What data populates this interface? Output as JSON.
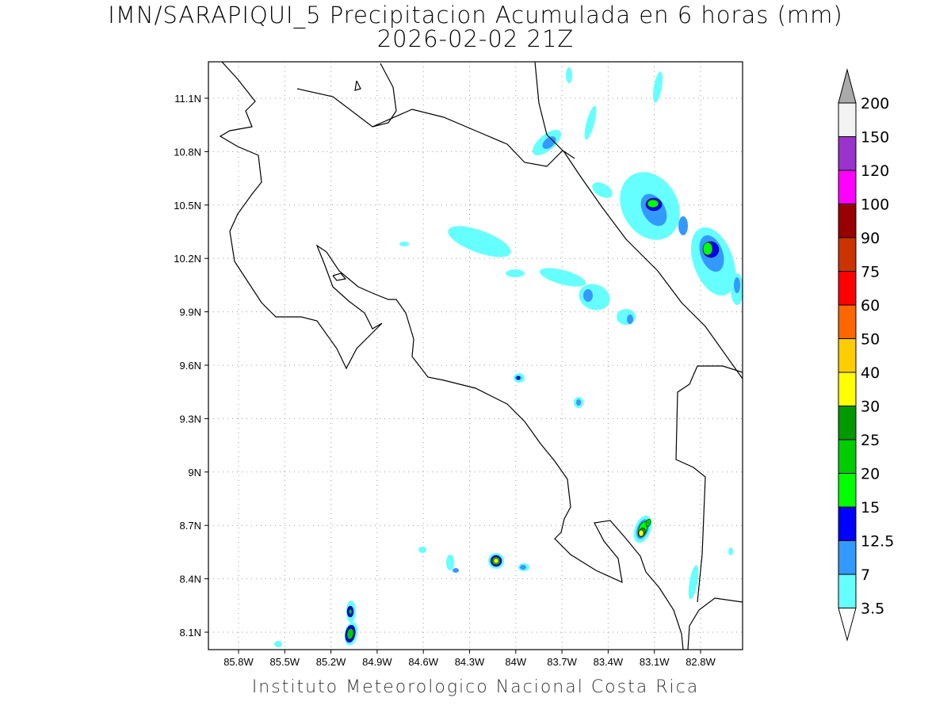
{
  "title": {
    "line1": "IMN/SARAPIQUI_5 Precipitacion Acumulada en 6 horas (mm)",
    "line2": "2026-02-02 21Z"
  },
  "footer": "Instituto Meteorologico Nacional Costa Rica",
  "map": {
    "lon_ticks": [
      "85.8W",
      "85.5W",
      "85.2W",
      "84.9W",
      "84.6W",
      "84.3W",
      "84W",
      "83.7W",
      "83.4W",
      "83.1W",
      "82.8W"
    ],
    "lat_ticks": [
      "11.1N",
      "10.8N",
      "10.5N",
      "10.2N",
      "9.9N",
      "9.6N",
      "9.3N",
      "9N",
      "8.7N",
      "8.4N",
      "8.1N"
    ]
  },
  "colorbar": {
    "labels": [
      "3.5",
      "7",
      "12.5",
      "15",
      "20",
      "25",
      "30",
      "40",
      "50",
      "60",
      "75",
      "90",
      "100",
      "120",
      "150",
      "200"
    ],
    "colors": [
      "#66ffff",
      "#3399ff",
      "#0000ff",
      "#00ff00",
      "#00cc00",
      "#009900",
      "#ffff00",
      "#ffcc00",
      "#ff6600",
      "#ff0000",
      "#cc3300",
      "#990000",
      "#ff00ff",
      "#9933cc",
      "#f2f2f2"
    ],
    "over_color": "#aaaaaa"
  }
}
